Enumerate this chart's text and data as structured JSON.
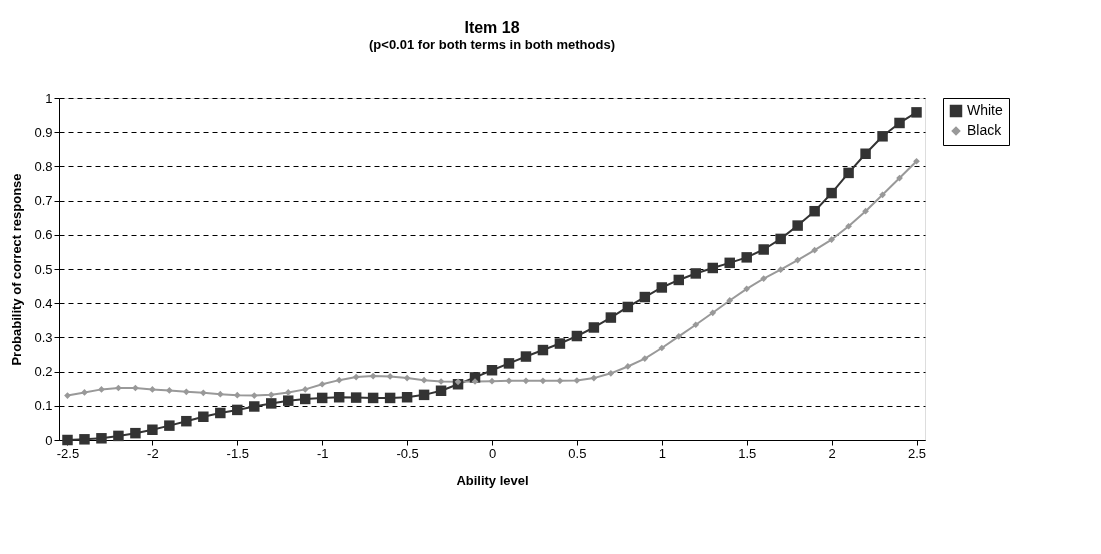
{
  "chart_data": {
    "type": "line",
    "title": "Item 18",
    "subtitle": "(p<0.01 for both terms in both methods)",
    "xlabel": "Ability level",
    "ylabel": "Probability of correct response",
    "x": [
      -2.5,
      -2.4,
      -2.3,
      -2.2,
      -2.1,
      -2.0,
      -1.9,
      -1.8,
      -1.7,
      -1.6,
      -1.5,
      -1.4,
      -1.3,
      -1.2,
      -1.1,
      -1.0,
      -0.9,
      -0.8,
      -0.7,
      -0.6,
      -0.5,
      -0.4,
      -0.3,
      -0.2,
      -0.1,
      0.0,
      0.1,
      0.2,
      0.3,
      0.4,
      0.5,
      0.6,
      0.7,
      0.8,
      0.9,
      1.0,
      1.1,
      1.2,
      1.3,
      1.4,
      1.5,
      1.6,
      1.7,
      1.8,
      1.9,
      2.0,
      2.1,
      2.2,
      2.3,
      2.4,
      2.5
    ],
    "series": [
      {
        "name": "White",
        "color": "#333333",
        "marker": "square",
        "values": [
          0,
          0.002,
          0.005,
          0.012,
          0.02,
          0.03,
          0.042,
          0.055,
          0.068,
          0.079,
          0.088,
          0.098,
          0.107,
          0.115,
          0.12,
          0.123,
          0.125,
          0.124,
          0.123,
          0.123,
          0.125,
          0.132,
          0.144,
          0.163,
          0.183,
          0.204,
          0.224,
          0.244,
          0.263,
          0.282,
          0.304,
          0.329,
          0.358,
          0.389,
          0.418,
          0.446,
          0.468,
          0.487,
          0.503,
          0.518,
          0.534,
          0.557,
          0.588,
          0.627,
          0.669,
          0.722,
          0.781,
          0.837,
          0.888,
          0.927,
          0.958
        ]
      },
      {
        "name": "Black",
        "color": "#999999",
        "marker": "diamond",
        "values": [
          0.13,
          0.139,
          0.148,
          0.152,
          0.152,
          0.148,
          0.145,
          0.141,
          0.138,
          0.134,
          0.131,
          0.13,
          0.132,
          0.139,
          0.148,
          0.163,
          0.175,
          0.184,
          0.187,
          0.186,
          0.181,
          0.175,
          0.171,
          0.17,
          0.171,
          0.172,
          0.173,
          0.173,
          0.173,
          0.173,
          0.174,
          0.181,
          0.195,
          0.215,
          0.238,
          0.269,
          0.303,
          0.337,
          0.372,
          0.408,
          0.442,
          0.472,
          0.498,
          0.526,
          0.555,
          0.586,
          0.625,
          0.669,
          0.717,
          0.766,
          0.815
        ]
      }
    ],
    "xlim": [
      -2.55,
      2.55
    ],
    "xticks": [
      -2.5,
      -2,
      -1.5,
      -1,
      -0.5,
      0,
      0.5,
      1,
      1.5,
      2,
      2.5
    ],
    "ylim": [
      0,
      1
    ],
    "yticks": [
      0,
      0.1,
      0.2,
      0.3,
      0.4,
      0.5,
      0.6,
      0.7,
      0.8,
      0.9,
      1
    ],
    "grid": "y",
    "line_style": "solid",
    "legend": "right"
  }
}
